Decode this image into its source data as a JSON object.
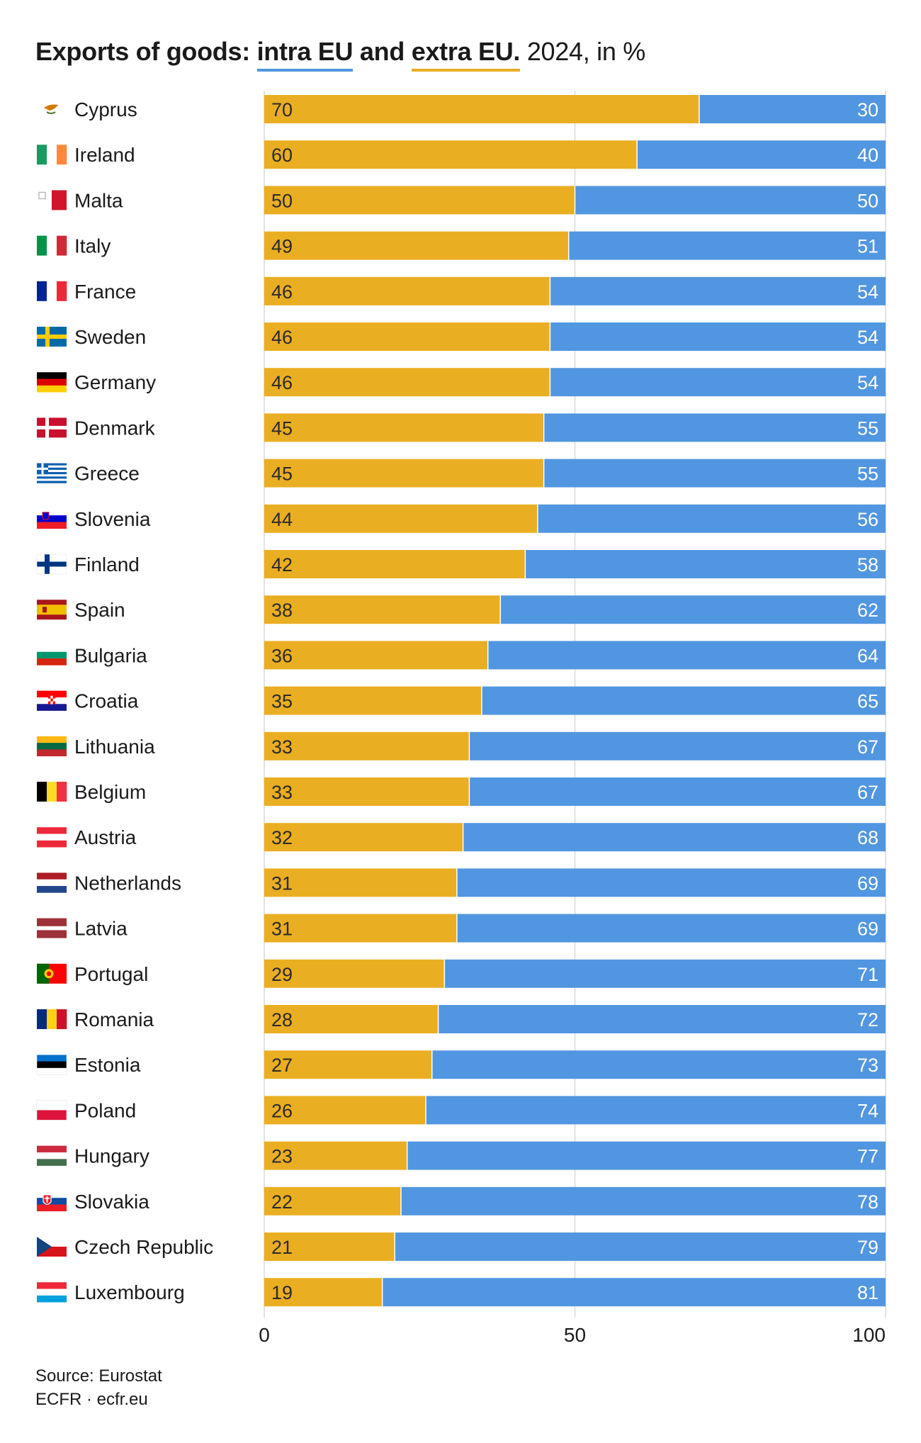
{
  "title": {
    "lead": "Exports of goods:",
    "intra": "intra EU",
    "and": "and",
    "extra": "extra EU.",
    "tail": "2024, in %"
  },
  "colors": {
    "intra": "#5196E0",
    "extra": "#EAAE22",
    "grid": "#d9d9d9",
    "text": "#1a1a1a",
    "value_on_blue": "#ffffff",
    "value_on_yellow": "#2b2b2b"
  },
  "chart_data": {
    "type": "bar",
    "orientation": "horizontal",
    "stacked": true,
    "categories": [
      "Cyprus",
      "Ireland",
      "Malta",
      "Italy",
      "France",
      "Sweden",
      "Germany",
      "Denmark",
      "Greece",
      "Slovenia",
      "Finland",
      "Spain",
      "Bulgaria",
      "Croatia",
      "Lithuania",
      "Belgium",
      "Austria",
      "Netherlands",
      "Latvia",
      "Portugal",
      "Romania",
      "Estonia",
      "Poland",
      "Hungary",
      "Slovakia",
      "Czech Republic",
      "Luxembourg"
    ],
    "series": [
      {
        "name": "extra EU",
        "values": [
          70,
          60,
          50,
          49,
          46,
          46,
          46,
          45,
          45,
          44,
          42,
          38,
          36,
          35,
          33,
          33,
          32,
          31,
          31,
          29,
          28,
          27,
          26,
          23,
          22,
          21,
          19
        ]
      },
      {
        "name": "intra EU",
        "values": [
          30,
          40,
          50,
          51,
          54,
          54,
          54,
          55,
          55,
          56,
          58,
          62,
          64,
          65,
          67,
          67,
          68,
          69,
          69,
          71,
          72,
          73,
          74,
          77,
          78,
          79,
          81
        ]
      }
    ],
    "xlim": [
      0,
      100
    ],
    "xticks": [
      "0",
      "50",
      "100"
    ],
    "grid": true,
    "legend": "in title"
  },
  "flags": [
    "cyprus-flag-icon",
    "ireland-flag-icon",
    "malta-flag-icon",
    "italy-flag-icon",
    "france-flag-icon",
    "sweden-flag-icon",
    "germany-flag-icon",
    "denmark-flag-icon",
    "greece-flag-icon",
    "slovenia-flag-icon",
    "finland-flag-icon",
    "spain-flag-icon",
    "bulgaria-flag-icon",
    "croatia-flag-icon",
    "lithuania-flag-icon",
    "belgium-flag-icon",
    "austria-flag-icon",
    "netherlands-flag-icon",
    "latvia-flag-icon",
    "portugal-flag-icon",
    "romania-flag-icon",
    "estonia-flag-icon",
    "poland-flag-icon",
    "hungary-flag-icon",
    "slovakia-flag-icon",
    "czech-republic-flag-icon",
    "luxembourg-flag-icon"
  ],
  "footer": {
    "source": "Source: Eurostat",
    "credit": "ECFR · ecfr.eu"
  }
}
